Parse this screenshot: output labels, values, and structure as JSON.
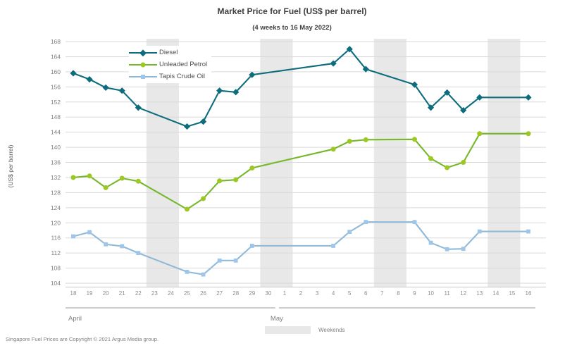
{
  "footer": {
    "copyright": "Singapore Fuel Prices are Copyright © 2021 Argus Media group."
  },
  "chart_data": {
    "type": "line",
    "title": "Market Price for Fuel (US$ per barrel)",
    "subtitle": "(4 weeks to 16 May 2022)",
    "ylabel": "(US$ per barrel)",
    "ylim": [
      104,
      168
    ],
    "ytick_step": 4,
    "grid": true,
    "legend_position": "top-left-inside",
    "x_categories": [
      "18",
      "19",
      "20",
      "21",
      "22",
      "23",
      "24",
      "25",
      "26",
      "27",
      "28",
      "29",
      "30",
      "1",
      "2",
      "3",
      "4",
      "5",
      "6",
      "7",
      "8",
      "9",
      "10",
      "11",
      "12",
      "13",
      "14",
      "15",
      "16"
    ],
    "month_groups": [
      {
        "label": "April",
        "start": 0,
        "end": 12
      },
      {
        "label": "May",
        "start": 13,
        "end": 28
      }
    ],
    "weekend_bands": [
      [
        5,
        6
      ],
      [
        12,
        13
      ],
      [
        19,
        20
      ],
      [
        26,
        27
      ]
    ],
    "weekend_color": "#e8e8e8",
    "weekend_legend_label": "Weekends",
    "gridline_color": "#d9d9d9",
    "axis_line_color": "#c9c9c9",
    "tick_label_color": "#808080",
    "series": [
      {
        "name": "Diesel",
        "color": "#0e6d7d",
        "marker": "diamond",
        "values": [
          159.6,
          158,
          155.8,
          155,
          150.5,
          null,
          null,
          145.5,
          146.8,
          155,
          154.6,
          159.2,
          null,
          null,
          null,
          null,
          162.2,
          166,
          160.7,
          null,
          null,
          156.6,
          150.5,
          154.5,
          149.8,
          153.2,
          null,
          null,
          153.2
        ]
      },
      {
        "name": "Unleaded Petrol",
        "color": "#76b82b",
        "marker_color": "#9dc822",
        "marker": "circle",
        "values": [
          132,
          132.4,
          129.3,
          131.8,
          131,
          null,
          null,
          123.6,
          126.4,
          131.1,
          131.4,
          134.5,
          null,
          null,
          null,
          null,
          139.5,
          141.6,
          142,
          null,
          null,
          142.1,
          137,
          134.6,
          136,
          143.6,
          null,
          null,
          143.6
        ]
      },
      {
        "name": "Tapis Crude Oil",
        "color": "#90bad9",
        "marker_color": "#9fc5e8",
        "marker": "square",
        "values": [
          116.4,
          117.5,
          114.3,
          113.8,
          112,
          null,
          null,
          107,
          106.3,
          110,
          110,
          113.9,
          null,
          null,
          null,
          null,
          113.9,
          117.6,
          120.2,
          null,
          null,
          120.2,
          114.7,
          113,
          113.1,
          117.7,
          null,
          null,
          117.7
        ]
      }
    ]
  }
}
